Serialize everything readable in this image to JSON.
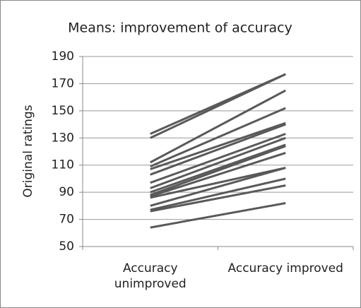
{
  "chart_data": {
    "type": "line",
    "title": "Means: improvement of accuracy",
    "y_label": "Original ratings",
    "categories": [
      "Accuracy unimproved",
      "Accuracy improved"
    ],
    "color": "#595959",
    "series": [
      {
        "values": [
          133,
          177
        ]
      },
      {
        "values": [
          130,
          177
        ]
      },
      {
        "values": [
          112,
          165
        ]
      },
      {
        "values": [
          109,
          152
        ]
      },
      {
        "values": [
          107,
          141
        ]
      },
      {
        "values": [
          103,
          140
        ]
      },
      {
        "values": [
          97,
          133
        ]
      },
      {
        "values": [
          93,
          130
        ]
      },
      {
        "values": [
          90,
          125
        ]
      },
      {
        "values": [
          88,
          124
        ]
      },
      {
        "values": [
          87,
          119
        ]
      },
      {
        "values": [
          86,
          108
        ]
      },
      {
        "values": [
          80,
          108
        ]
      },
      {
        "values": [
          77,
          100
        ]
      },
      {
        "values": [
          76,
          95
        ]
      },
      {
        "values": [
          64,
          82
        ]
      }
    ],
    "ylim": [
      50,
      190
    ],
    "yticks": [
      50,
      70,
      90,
      110,
      130,
      150,
      170,
      190
    ],
    "grid": true
  }
}
